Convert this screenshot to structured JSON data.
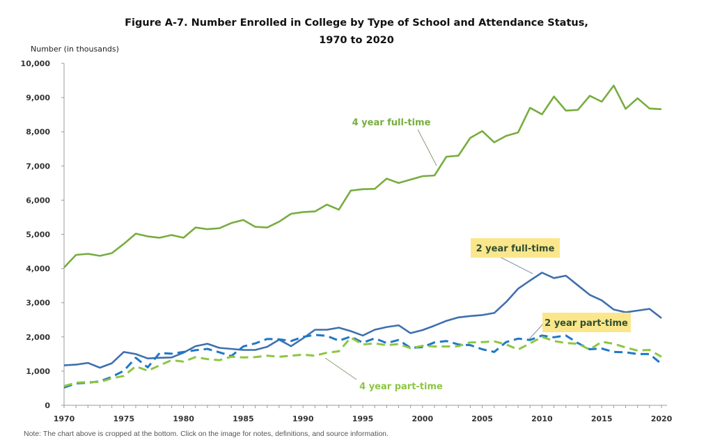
{
  "chart_data": {
    "type": "line",
    "title_line1": "Figure A-7. Number Enrolled in College by Type of School and Attendance Status,",
    "title_line2": "1970 to 2020",
    "ylabel": "Number (in thousands)",
    "xlabel": "",
    "xlim": [
      1970,
      2020
    ],
    "ylim": [
      0,
      10000
    ],
    "x_ticks": [
      "1970",
      "1975",
      "1980",
      "1985",
      "1990",
      "1995",
      "2000",
      "2005",
      "2010",
      "2015",
      "2020"
    ],
    "y_ticks": [
      "0",
      "1,000",
      "2,000",
      "3,000",
      "4,000",
      "5,000",
      "6,000",
      "7,000",
      "8,000",
      "9,000",
      "10,000"
    ],
    "grid": false,
    "legend": "inline annotations",
    "x": [
      1970,
      1971,
      1972,
      1973,
      1974,
      1975,
      1976,
      1977,
      1978,
      1979,
      1980,
      1981,
      1982,
      1983,
      1984,
      1985,
      1986,
      1987,
      1988,
      1989,
      1990,
      1991,
      1992,
      1993,
      1994,
      1995,
      1996,
      1997,
      1998,
      1999,
      2000,
      2001,
      2002,
      2003,
      2004,
      2005,
      2006,
      2007,
      2008,
      2009,
      2010,
      2011,
      2012,
      2013,
      2014,
      2015,
      2016,
      2017,
      2018,
      2019,
      2020
    ],
    "series": [
      {
        "name": "4 year full-time",
        "color": "#77ad3f",
        "dashed": false,
        "values": [
          4030,
          4400,
          4430,
          4370,
          4450,
          4720,
          5020,
          4940,
          4900,
          4980,
          4900,
          5200,
          5150,
          5180,
          5330,
          5420,
          5220,
          5200,
          5370,
          5600,
          5650,
          5670,
          5870,
          5720,
          6280,
          6320,
          6330,
          6630,
          6500,
          6600,
          6700,
          6720,
          7270,
          7300,
          7820,
          8020,
          7690,
          7880,
          7980,
          8700,
          8510,
          9030,
          8620,
          8640,
          9050,
          8880,
          9350,
          8670,
          8980,
          8680,
          8660
        ]
      },
      {
        "name": "2 year full-time",
        "color": "#3f6fae",
        "dashed": false,
        "values": [
          1170,
          1190,
          1240,
          1100,
          1230,
          1560,
          1500,
          1370,
          1390,
          1400,
          1540,
          1730,
          1800,
          1680,
          1650,
          1620,
          1620,
          1710,
          1920,
          1730,
          1960,
          2210,
          2210,
          2270,
          2170,
          2040,
          2210,
          2290,
          2340,
          2110,
          2200,
          2330,
          2470,
          2570,
          2610,
          2640,
          2700,
          3020,
          3410,
          3650,
          3880,
          3720,
          3790,
          3510,
          3230,
          3070,
          2800,
          2720,
          2770,
          2820,
          2550
        ]
      },
      {
        "name": "2 year part-time",
        "color": "#1f78c8",
        "dashed": true,
        "values": [
          520,
          640,
          660,
          700,
          830,
          1010,
          1390,
          1110,
          1530,
          1510,
          1560,
          1610,
          1650,
          1550,
          1440,
          1720,
          1810,
          1940,
          1930,
          1880,
          2000,
          2060,
          2030,
          1890,
          2010,
          1830,
          1960,
          1820,
          1910,
          1680,
          1700,
          1840,
          1880,
          1780,
          1760,
          1640,
          1560,
          1850,
          1950,
          1910,
          2040,
          1990,
          2040,
          1820,
          1640,
          1660,
          1560,
          1550,
          1500,
          1500,
          1210
        ]
      },
      {
        "name": "4 year part-time",
        "color": "#8dc641",
        "dashed": true,
        "values": [
          560,
          660,
          680,
          680,
          790,
          860,
          1140,
          1010,
          1170,
          1320,
          1280,
          1410,
          1350,
          1320,
          1420,
          1400,
          1410,
          1450,
          1420,
          1450,
          1480,
          1450,
          1540,
          1580,
          1980,
          1780,
          1810,
          1760,
          1790,
          1670,
          1740,
          1720,
          1720,
          1730,
          1840,
          1850,
          1870,
          1780,
          1630,
          1810,
          2000,
          1880,
          1820,
          1800,
          1630,
          1860,
          1800,
          1690,
          1600,
          1620,
          1420
        ]
      }
    ],
    "annotations": [
      "4 year full-time",
      "2 year full-time",
      "2 year part-time",
      "4 year part-time"
    ],
    "note": "Note: The chart above is cropped at the bottom. Click on the image for notes, definitions, and source information."
  },
  "colors": {
    "highlight_box": "#fbe68c",
    "label_dark": "#2f4f2f"
  }
}
